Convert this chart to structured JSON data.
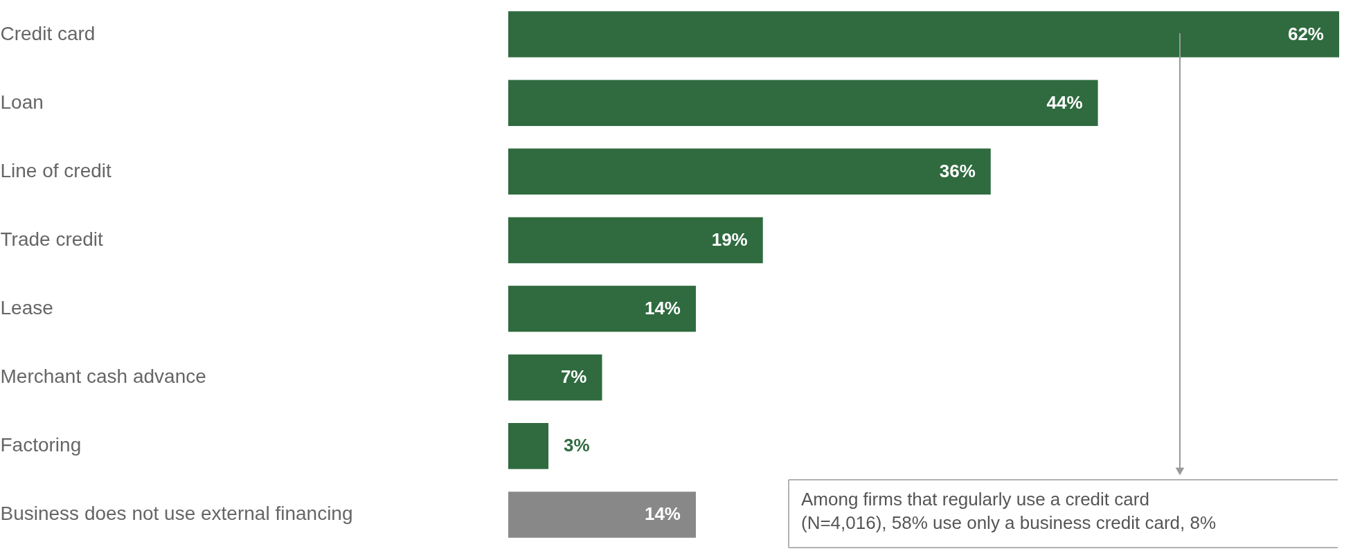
{
  "chart_data": {
    "type": "bar",
    "orientation": "horizontal",
    "categories": [
      "Credit card",
      "Loan",
      "Line of credit",
      "Trade credit",
      "Lease",
      "Merchant cash advance",
      "Factoring",
      "Business does not use external financing"
    ],
    "values": [
      62,
      44,
      36,
      19,
      14,
      7,
      3,
      14
    ],
    "value_labels": [
      "62%",
      "44%",
      "36%",
      "19%",
      "14%",
      "7%",
      "3%",
      "14%"
    ],
    "colors": [
      "#2f6b3f",
      "#2f6b3f",
      "#2f6b3f",
      "#2f6b3f",
      "#2f6b3f",
      "#2f6b3f",
      "#2f6b3f",
      "#888888"
    ],
    "xlim": [
      0,
      62
    ],
    "tick_labels": "y",
    "grid": false,
    "annotations": [
      "Among firms that regularly use a credit card (N=4,016), 58% use only a business credit card, 8%"
    ]
  }
}
